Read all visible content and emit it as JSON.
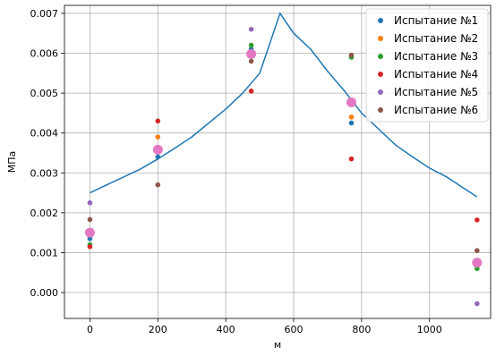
{
  "chart_data": {
    "type": "scatter",
    "xlabel": "м",
    "ylabel": "МПа",
    "xlim": [
      -75,
      1180
    ],
    "ylim": [
      -0.00065,
      0.0072
    ],
    "x_ticks": [
      0,
      200,
      400,
      600,
      800,
      1000
    ],
    "y_ticks": [
      0.0,
      0.001,
      0.002,
      0.003,
      0.004,
      0.005,
      0.006,
      0.007
    ],
    "x_tick_labels": [
      "0",
      "200",
      "400",
      "600",
      "800",
      "1000"
    ],
    "y_tick_labels": [
      "0.000",
      "0.001",
      "0.002",
      "0.003",
      "0.004",
      "0.005",
      "0.006",
      "0.007"
    ],
    "grid": true,
    "legend_position": "top-right",
    "series": [
      {
        "name": "Испытание №1",
        "color": "#1f77b4",
        "points": [
          [
            0,
            0.00135
          ],
          [
            200,
            0.0034
          ],
          [
            475,
            0.0061
          ],
          [
            770,
            0.00425
          ],
          [
            1140,
            0.00065
          ]
        ]
      },
      {
        "name": "Испытание №2",
        "color": "#ff7f0e",
        "points": [
          [
            0,
            0.00145
          ],
          [
            200,
            0.0039
          ],
          [
            475,
            0.006
          ],
          [
            770,
            0.0044
          ],
          [
            1140,
            0.0007
          ]
        ]
      },
      {
        "name": "Испытание №3",
        "color": "#2ca02c",
        "points": [
          [
            0,
            0.0012
          ],
          [
            200,
            0.0036
          ],
          [
            475,
            0.0062
          ],
          [
            770,
            0.0059
          ],
          [
            1140,
            0.0006
          ]
        ]
      },
      {
        "name": "Испытание №4",
        "color": "#d62728",
        "points": [
          [
            0,
            0.00115
          ],
          [
            200,
            0.0043
          ],
          [
            475,
            0.00505
          ],
          [
            770,
            0.00335
          ],
          [
            1140,
            0.00182
          ]
        ]
      },
      {
        "name": "Испытание №5",
        "color": "#9467bd",
        "points": [
          [
            0,
            0.00225
          ],
          [
            200,
            0.0036
          ],
          [
            475,
            0.0066
          ],
          [
            770,
            0.0048
          ],
          [
            1140,
            -0.00028
          ]
        ]
      },
      {
        "name": "Испытание №6",
        "color": "#8c564b",
        "points": [
          [
            0,
            0.00183
          ],
          [
            200,
            0.0027
          ],
          [
            475,
            0.0058
          ],
          [
            770,
            0.00595
          ],
          [
            1140,
            0.00105
          ]
        ]
      }
    ],
    "mean_points": {
      "color": "#e377c2",
      "points": [
        [
          0,
          0.0015
        ],
        [
          200,
          0.00358
        ],
        [
          475,
          0.00598
        ],
        [
          770,
          0.00477
        ],
        [
          1140,
          0.00075
        ]
      ]
    },
    "curve": {
      "color": "#1f77b4",
      "x": [
        0,
        50,
        100,
        150,
        200,
        250,
        300,
        350,
        400,
        450,
        500,
        560,
        600,
        650,
        700,
        750,
        800,
        850,
        900,
        950,
        1000,
        1050,
        1100,
        1140
      ],
      "y": [
        0.0025,
        0.0027,
        0.0029,
        0.0031,
        0.00335,
        0.00362,
        0.0039,
        0.00425,
        0.0046,
        0.005,
        0.0055,
        0.007,
        0.0065,
        0.0061,
        0.00555,
        0.00505,
        0.0045,
        0.0041,
        0.0037,
        0.0034,
        0.00312,
        0.0029,
        0.00262,
        0.0024
      ]
    }
  }
}
